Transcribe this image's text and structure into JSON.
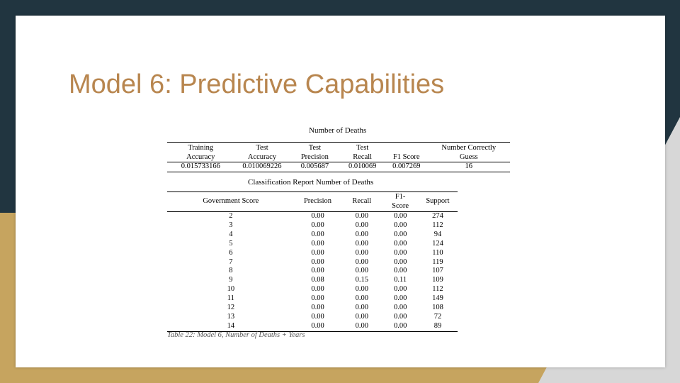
{
  "title": "Model 6: Predictive Capabilities",
  "summary": {
    "caption": "Number of Deaths",
    "headers": [
      [
        "Training",
        "Accuracy"
      ],
      [
        "Test",
        "Accuracy"
      ],
      [
        "Test",
        "Precision"
      ],
      [
        "Test",
        "Recall"
      ],
      [
        "F1 Score"
      ],
      [
        "Number Correctly",
        "Guess"
      ]
    ],
    "values": [
      "0.015733166",
      "0.010069226",
      "0.005687",
      "0.010069",
      "0.007269",
      "16"
    ]
  },
  "report": {
    "caption": "Classification Report Number of Deaths",
    "headers": [
      [
        "Government Score"
      ],
      [
        "Precision"
      ],
      [
        "Recall"
      ],
      [
        "F1-",
        "Score"
      ],
      [
        "Support"
      ]
    ],
    "rows": [
      [
        "2",
        "0.00",
        "0.00",
        "0.00",
        "274"
      ],
      [
        "3",
        "0.00",
        "0.00",
        "0.00",
        "112"
      ],
      [
        "4",
        "0.00",
        "0.00",
        "0.00",
        "94"
      ],
      [
        "5",
        "0.00",
        "0.00",
        "0.00",
        "124"
      ],
      [
        "6",
        "0.00",
        "0.00",
        "0.00",
        "110"
      ],
      [
        "7",
        "0.00",
        "0.00",
        "0.00",
        "119"
      ],
      [
        "8",
        "0.00",
        "0.00",
        "0.00",
        "107"
      ],
      [
        "9",
        "0.08",
        "0.15",
        "0.11",
        "109"
      ],
      [
        "10",
        "0.00",
        "0.00",
        "0.00",
        "112"
      ],
      [
        "11",
        "0.00",
        "0.00",
        "0.00",
        "149"
      ],
      [
        "12",
        "0.00",
        "0.00",
        "0.00",
        "108"
      ],
      [
        "13",
        "0.00",
        "0.00",
        "0.00",
        "72"
      ],
      [
        "14",
        "0.00",
        "0.00",
        "0.00",
        "89"
      ]
    ]
  },
  "footnote": "Table 22: Model 6, Number of Deaths + Years"
}
